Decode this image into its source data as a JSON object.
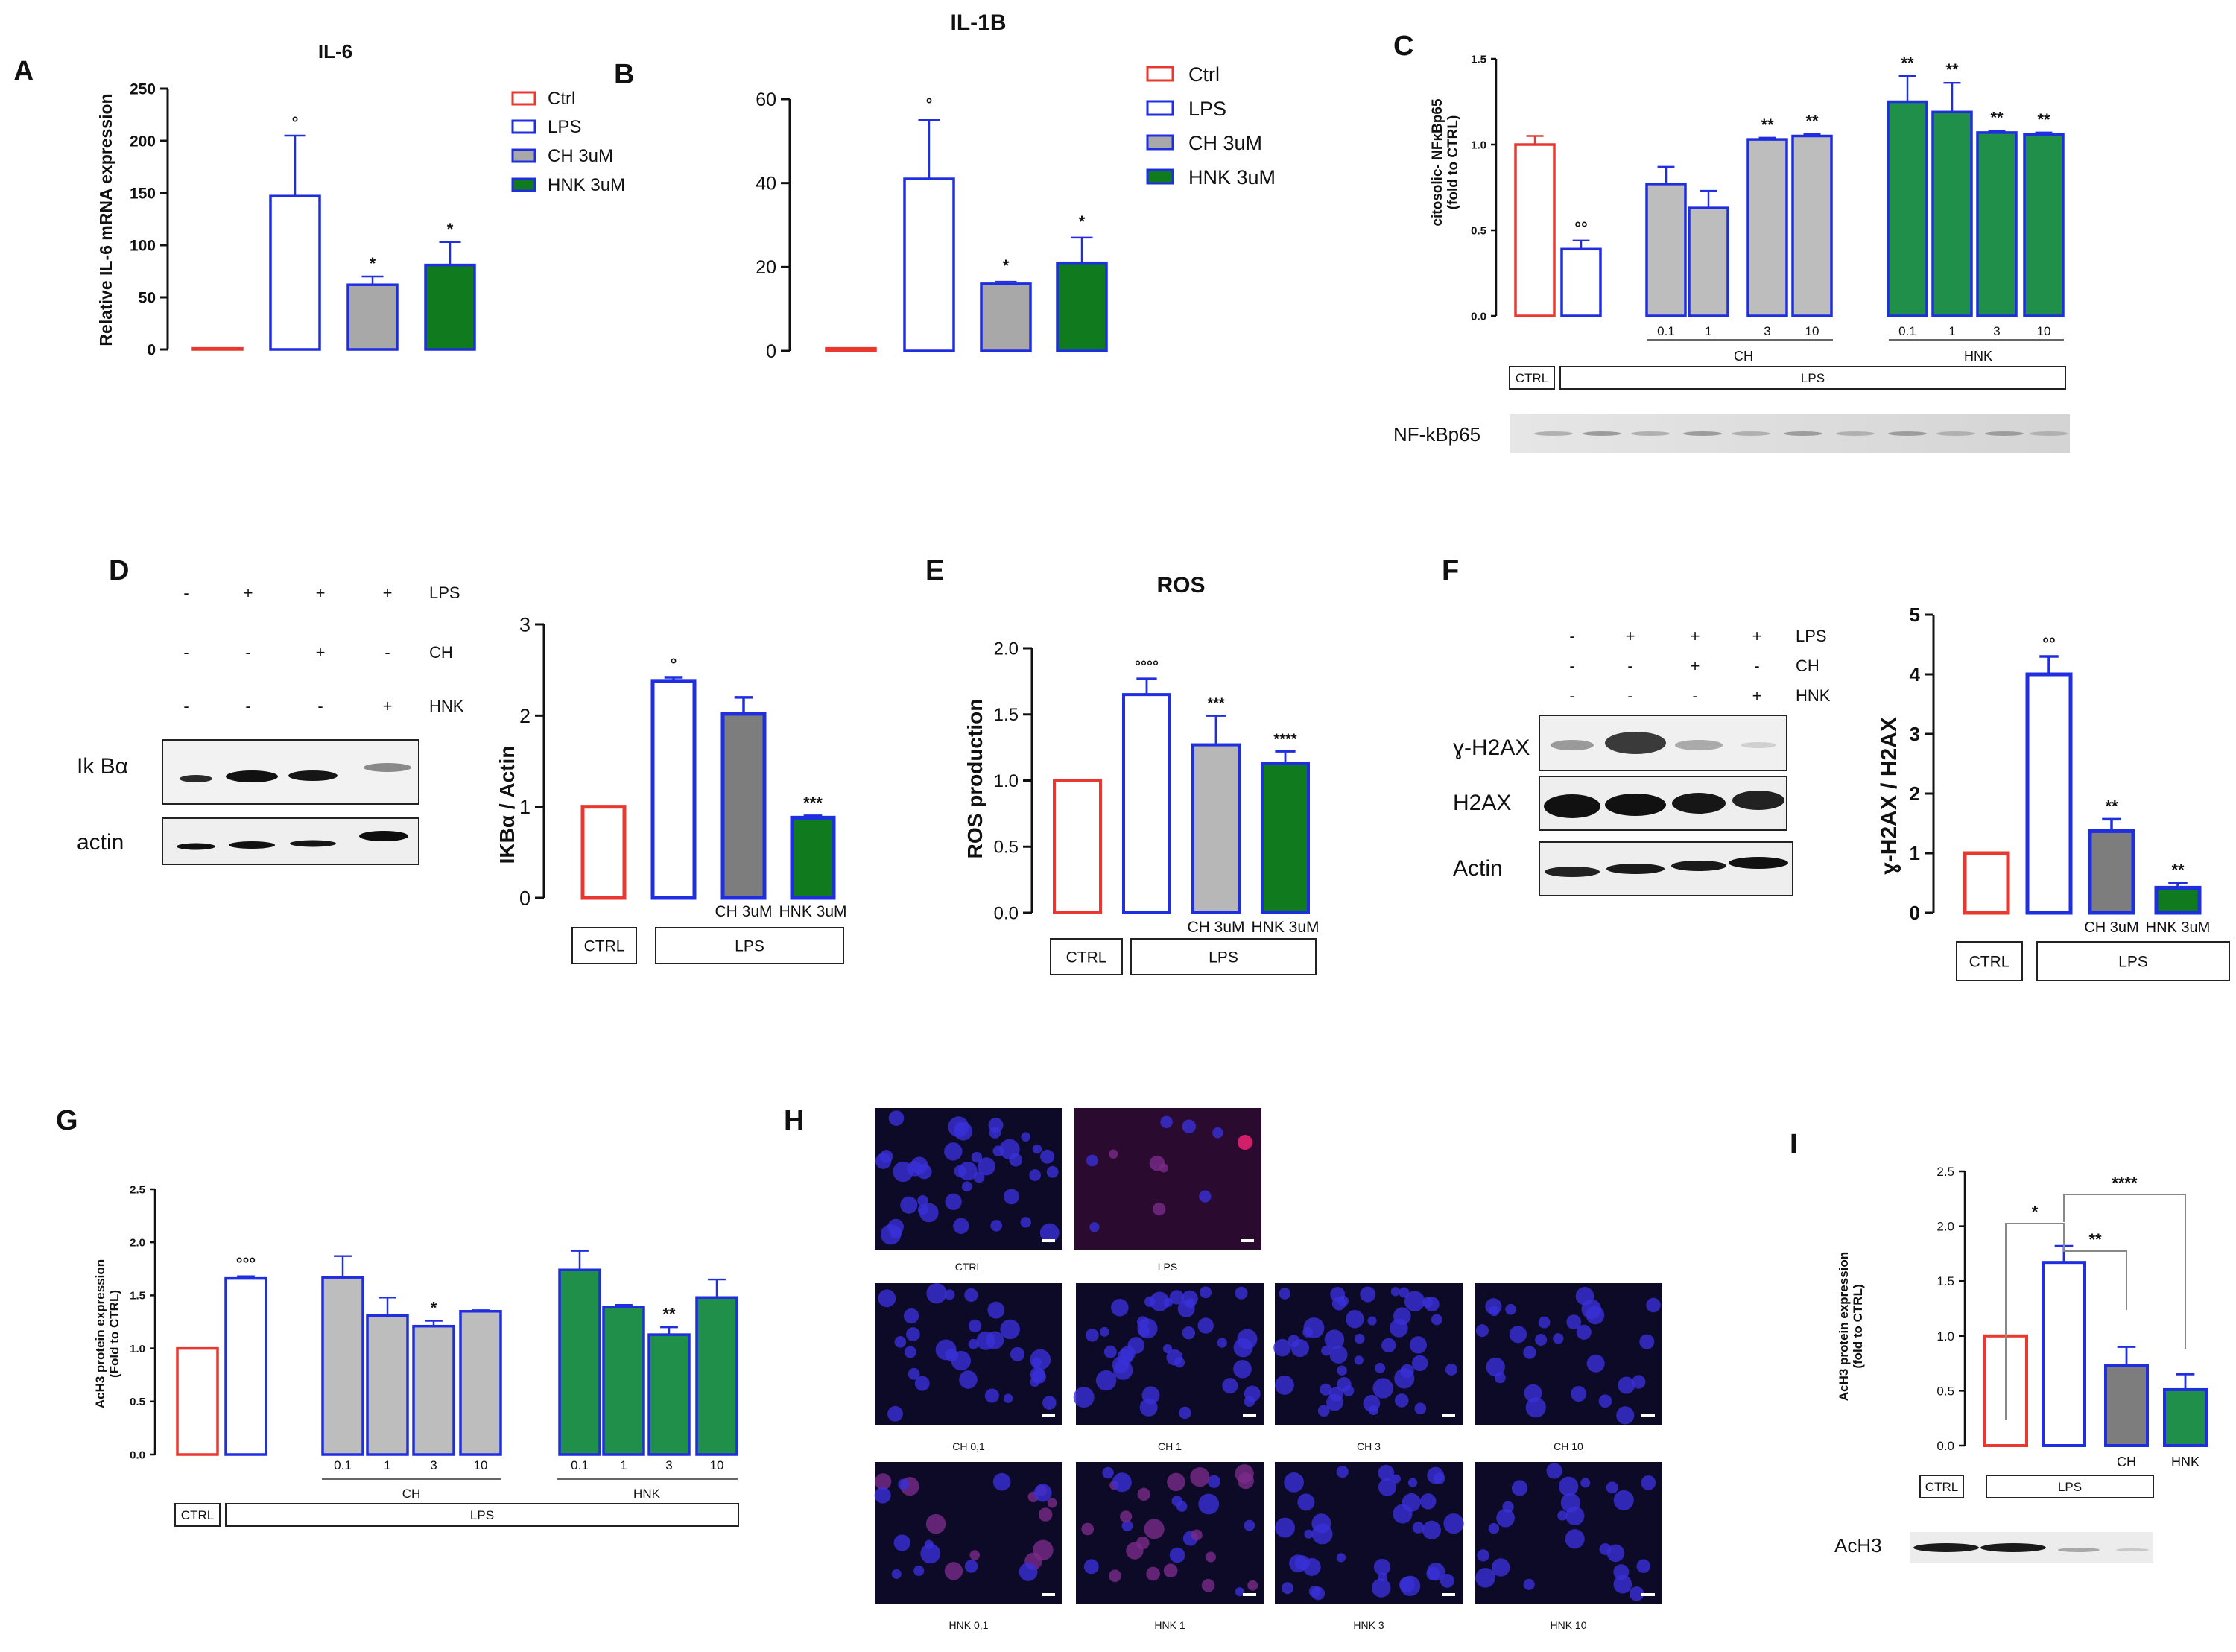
{
  "colors": {
    "ctrl": "#e8382f",
    "lps": "#1f2ee0",
    "ch": "#b7b7b7",
    "ch_dark": "#7d7d7d",
    "hnk": "#1f8f4a",
    "hnk_dark": "#0f7a1e"
  },
  "panel_labels": {
    "A": "A",
    "B": "B",
    "C": "C",
    "D": "D",
    "E": "E",
    "F": "F",
    "G": "G",
    "H": "H",
    "I": "I"
  },
  "chart_data": [
    {
      "id": "A",
      "type": "bar",
      "title": "IL-6",
      "xlabel": "",
      "ylabel": "Relative IL-6 mRNA expression",
      "ylim": [
        0,
        250
      ],
      "ticks": [
        0,
        50,
        100,
        150,
        200,
        250
      ],
      "categories": [
        "Ctrl",
        "LPS",
        "CH 3uM",
        "HNK 3uM"
      ],
      "values": [
        1,
        147,
        62,
        81
      ],
      "errors": [
        0,
        58,
        8,
        22
      ],
      "annotations": [
        "",
        "°",
        "*",
        "*"
      ],
      "legend": [
        "Ctrl",
        "LPS",
        "CH 3uM",
        "HNK 3uM"
      ]
    },
    {
      "id": "B",
      "type": "bar",
      "title": "IL-1B",
      "xlabel": "",
      "ylabel": "",
      "ylim": [
        0,
        60
      ],
      "ticks": [
        0,
        20,
        40,
        60
      ],
      "categories": [
        "Ctrl",
        "LPS",
        "CH 3uM",
        "HNK 3uM"
      ],
      "values": [
        0.6,
        41,
        16,
        21
      ],
      "errors": [
        0,
        14,
        0.5,
        6
      ],
      "annotations": [
        "",
        "°",
        "*",
        "*"
      ],
      "legend": [
        "Ctrl",
        "LPS",
        "CH 3uM",
        "HNK 3uM"
      ]
    },
    {
      "id": "C",
      "type": "bar",
      "title": "",
      "ylabel": "citosolic- NFκBp65 (fold to CTRL)",
      "ylim": [
        0,
        1.5
      ],
      "ticks": [
        "0.0",
        "0.5",
        "1.0",
        "1.5"
      ],
      "categories": [
        "CTRL",
        "LPS",
        "CH 0.1",
        "CH 1",
        "CH 3",
        "CH 10",
        "HNK 0.1",
        "HNK 1",
        "HNK 3",
        "HNK 10"
      ],
      "dose_labels": [
        "0.1",
        "1",
        "3",
        "10",
        "0.1",
        "1",
        "3",
        "10"
      ],
      "values": [
        1.0,
        0.39,
        0.77,
        0.63,
        1.03,
        1.05,
        1.25,
        1.19,
        1.07,
        1.06
      ],
      "errors": [
        0.05,
        0.05,
        0.1,
        0.1,
        0.01,
        0.01,
        0.15,
        0.17,
        0.01,
        0.01
      ],
      "annotations": [
        "",
        "°°",
        "",
        "",
        "**",
        "**",
        "**",
        "**",
        "**",
        "**"
      ],
      "group_labels": {
        "ch": "CH",
        "hnk": "HNK",
        "ctrl": "CTRL",
        "lps": "LPS"
      },
      "blot_label": "NF-kBp65"
    },
    {
      "id": "D",
      "type": "bar",
      "title": "",
      "ylabel": "IKBα / Actin",
      "ylim": [
        0,
        3
      ],
      "ticks": [
        0,
        1,
        2,
        3
      ],
      "categories": [
        "CTRL",
        "LPS",
        "CH 3uM",
        "HNK 3uM"
      ],
      "values": [
        1.0,
        2.38,
        2.02,
        0.88
      ],
      "errors": [
        0,
        0.04,
        0.18,
        0.02
      ],
      "annotations": [
        "",
        "°",
        "",
        "***"
      ],
      "bar_labels": [
        "",
        "",
        "CH 3uM",
        "HNK 3uM"
      ],
      "group_labels": {
        "ctrl": "CTRL",
        "lps": "LPS"
      }
    },
    {
      "id": "E",
      "type": "bar",
      "title": "ROS",
      "ylabel": "ROS production",
      "ylim": [
        0,
        2
      ],
      "ticks": [
        "0.0",
        "0.5",
        "1.0",
        "1.5",
        "2.0"
      ],
      "categories": [
        "CTRL",
        "LPS",
        "CH 3uM",
        "HNK 3uM"
      ],
      "values": [
        1.0,
        1.65,
        1.27,
        1.13
      ],
      "errors": [
        0,
        0.12,
        0.22,
        0.09
      ],
      "annotations": [
        "",
        "°°°°",
        "***",
        "****"
      ],
      "bar_labels": [
        "",
        "",
        "CH 3uM",
        "HNK 3uM"
      ],
      "group_labels": {
        "ctrl": "CTRL",
        "lps": "LPS"
      }
    },
    {
      "id": "F",
      "type": "bar",
      "title": "",
      "ylabel": "ɣ-H2AX / H2AX",
      "ylim": [
        0,
        5
      ],
      "ticks": [
        0,
        1,
        2,
        3,
        4,
        5
      ],
      "categories": [
        "CTRL",
        "LPS",
        "CH 3uM",
        "HNK 3uM"
      ],
      "values": [
        1.0,
        4.0,
        1.37,
        0.42
      ],
      "errors": [
        0,
        0.3,
        0.2,
        0.08
      ],
      "annotations": [
        "",
        "°°",
        "**",
        "**"
      ],
      "bar_labels": [
        "",
        "",
        "CH 3uM",
        "HNK 3uM"
      ],
      "group_labels": {
        "ctrl": "CTRL",
        "lps": "LPS"
      }
    },
    {
      "id": "G",
      "type": "bar",
      "title": "",
      "ylabel": "AcH3 protein expression (Fold to CTRL)",
      "ylim": [
        0,
        2.5
      ],
      "ticks": [
        "0.0",
        "0.5",
        "1.0",
        "1.5",
        "2.0",
        "2.5"
      ],
      "categories": [
        "CTRL",
        "LPS",
        "CH 0.1",
        "CH 1",
        "CH 3",
        "CH 10",
        "HNK 0.1",
        "HNK 1",
        "HNK 3",
        "HNK 10"
      ],
      "dose_labels": [
        "0.1",
        "1",
        "3",
        "10",
        "0.1",
        "1",
        "3",
        "10"
      ],
      "values": [
        1.0,
        1.66,
        1.67,
        1.31,
        1.21,
        1.35,
        1.74,
        1.39,
        1.13,
        1.48
      ],
      "errors": [
        0,
        0.02,
        0.2,
        0.17,
        0.05,
        0.01,
        0.18,
        0.02,
        0.07,
        0.17
      ],
      "annotations": [
        "",
        "°°°",
        "",
        "",
        "*",
        "",
        "",
        "",
        "**",
        ""
      ],
      "group_labels": {
        "ch": "CH",
        "hnk": "HNK",
        "ctrl": "CTRL",
        "lps": "LPS"
      }
    },
    {
      "id": "I",
      "type": "bar",
      "title": "",
      "ylabel": "AcH3 protein expression (fold to CTRL)",
      "ylim": [
        0,
        2.5
      ],
      "ticks": [
        "0.0",
        "0.5",
        "1.0",
        "1.5",
        "2.0",
        "2.5"
      ],
      "categories": [
        "CTRL",
        "LPS",
        "CH",
        "HNK"
      ],
      "values": [
        1.0,
        1.67,
        0.73,
        0.51
      ],
      "errors": [
        0,
        0.15,
        0.17,
        0.14
      ],
      "bar_labels": [
        "",
        "",
        "CH",
        "HNK"
      ],
      "brackets": [
        {
          "label": "*"
        },
        {
          "label": "**"
        },
        {
          "label": "****"
        }
      ],
      "group_labels": {
        "ctrl": "CTRL",
        "lps": "LPS"
      },
      "blot_label": "AcH3"
    }
  ],
  "blots": {
    "D": {
      "row_labels": [
        "LPS",
        "CH",
        "HNK"
      ],
      "signs": [
        [
          "-",
          "+",
          "+",
          "+"
        ],
        [
          "-",
          "-",
          "+",
          "-"
        ],
        [
          "-",
          "-",
          "-",
          "+"
        ]
      ],
      "bands": [
        "Ik Bα",
        "actin"
      ]
    },
    "F": {
      "row_labels": [
        "LPS",
        "CH",
        "HNK"
      ],
      "signs": [
        [
          "-",
          "+",
          "+",
          "+"
        ],
        [
          "-",
          "-",
          "+",
          "-"
        ],
        [
          "-",
          "-",
          "-",
          "+"
        ]
      ],
      "bands": [
        "ɣ-H2AX",
        "H2AX",
        "Actin"
      ]
    }
  },
  "microscopy": {
    "captions": [
      "CTRL",
      "LPS",
      "CH 0,1",
      "CH 1",
      "CH 3",
      "CH 10",
      "HNK 0,1",
      "HNK 1",
      "HNK 3",
      "HNK 10"
    ]
  }
}
